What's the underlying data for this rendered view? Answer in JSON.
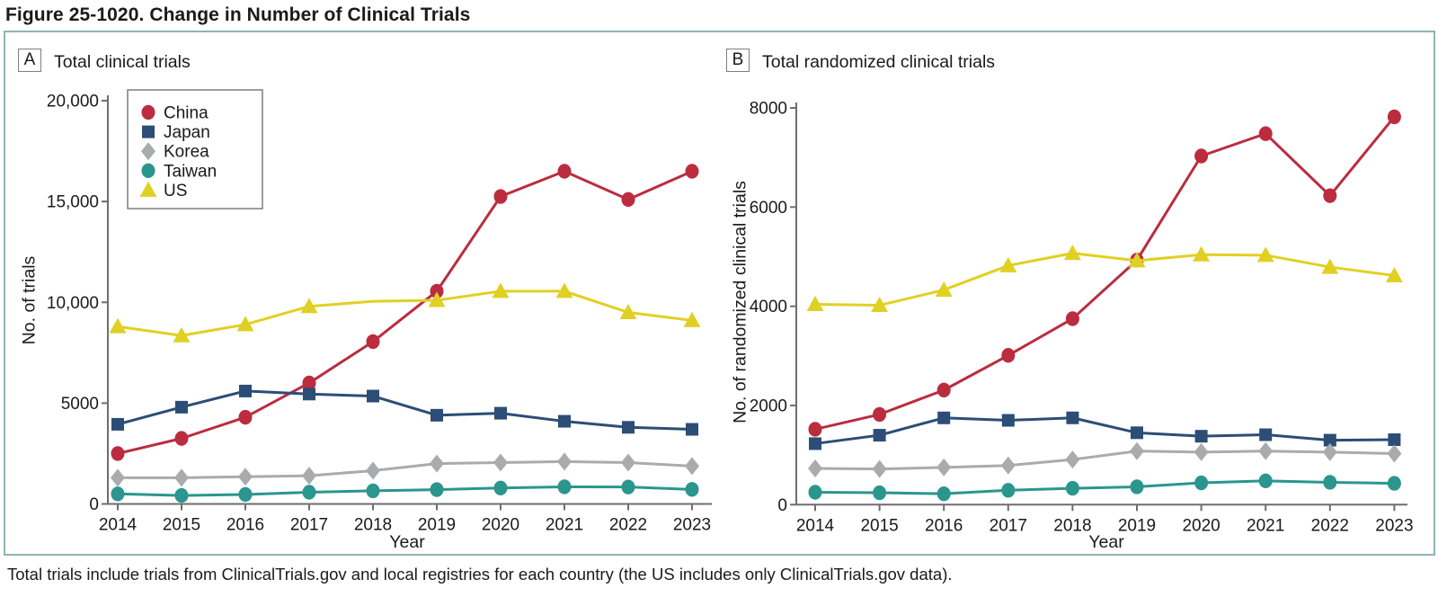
{
  "figure": {
    "title": "Figure 25-1020. Change in Number of Clinical Trials",
    "caption": "Total trials include trials from ClinicalTrials.gov and local registries for each country (the US includes only ClinicalTrials.gov data)."
  },
  "colors": {
    "china": "#bb2c3f",
    "japan": "#2c4d76",
    "korea": "#aaabae",
    "taiwan": "#2a968e",
    "us": "#e1d024",
    "axis": "#6d6e71",
    "legend_border": "#7c7e82",
    "box_border": "#8fb4b2"
  },
  "legend": {
    "location": "upper-left of panel A",
    "items": [
      {
        "label": "China",
        "series": "china",
        "marker": "circle"
      },
      {
        "label": "Japan",
        "series": "japan",
        "marker": "square"
      },
      {
        "label": "Korea",
        "series": "korea",
        "marker": "diamond"
      },
      {
        "label": "Taiwan",
        "series": "taiwan",
        "marker": "circle"
      },
      {
        "label": "US",
        "series": "us",
        "marker": "triangle"
      }
    ]
  },
  "chart_data": [
    {
      "panel": "A",
      "label": "A",
      "title": "Total clinical trials",
      "type": "line",
      "x": [
        2014,
        2015,
        2016,
        2017,
        2018,
        2019,
        2020,
        2021,
        2022,
        2023
      ],
      "xlabel": "Year",
      "ylabel": "No. of trials",
      "ylim": [
        0,
        20000
      ],
      "yticks": [
        {
          "v": 0,
          "label": "0"
        },
        {
          "v": 5000,
          "label": "5000"
        },
        {
          "v": 10000,
          "label": "10,000"
        },
        {
          "v": 15000,
          "label": "15,000"
        },
        {
          "v": 20000,
          "label": "20,000"
        }
      ],
      "grid": false,
      "legend_position": "upper-left-inside",
      "series": [
        {
          "name": "China",
          "key": "china",
          "marker": "circle",
          "values": [
            2500,
            3250,
            4300,
            6000,
            8050,
            10550,
            15250,
            16500,
            15100,
            16500
          ]
        },
        {
          "name": "Japan",
          "key": "japan",
          "marker": "square",
          "values": [
            3950,
            4800,
            5600,
            5450,
            5350,
            4400,
            4500,
            4100,
            3800,
            3700
          ]
        },
        {
          "name": "Korea",
          "key": "korea",
          "marker": "diamond",
          "values": [
            1300,
            1300,
            1350,
            1400,
            1650,
            2000,
            2050,
            2100,
            2050,
            1880
          ]
        },
        {
          "name": "Taiwan",
          "key": "taiwan",
          "marker": "circle",
          "values": [
            500,
            420,
            470,
            580,
            650,
            710,
            790,
            850,
            840,
            720
          ]
        },
        {
          "name": "US",
          "key": "us",
          "marker": "triangle",
          "values": [
            8800,
            8350,
            8900,
            9800,
            10050,
            10100,
            10550,
            10550,
            9500,
            9100
          ],
          "hidden_markers": [
            2018
          ]
        }
      ]
    },
    {
      "panel": "B",
      "label": "B",
      "title": "Total randomized clinical trials",
      "type": "line",
      "x": [
        2014,
        2015,
        2016,
        2017,
        2018,
        2019,
        2020,
        2021,
        2022,
        2023
      ],
      "xlabel": "Year",
      "ylabel": "No. of randomized clinical trials",
      "ylim": [
        0,
        8000
      ],
      "yticks": [
        {
          "v": 0,
          "label": "0"
        },
        {
          "v": 2000,
          "label": "2000"
        },
        {
          "v": 4000,
          "label": "4000"
        },
        {
          "v": 6000,
          "label": "6000"
        },
        {
          "v": 8000,
          "label": "8000"
        }
      ],
      "grid": false,
      "legend_position": "none",
      "series": [
        {
          "name": "China",
          "key": "china",
          "marker": "circle",
          "values": [
            1520,
            1820,
            2310,
            3010,
            3750,
            4930,
            7030,
            7480,
            6230,
            7820
          ]
        },
        {
          "name": "Japan",
          "key": "japan",
          "marker": "square",
          "values": [
            1230,
            1400,
            1750,
            1700,
            1750,
            1450,
            1380,
            1410,
            1300,
            1310
          ]
        },
        {
          "name": "Korea",
          "key": "korea",
          "marker": "diamond",
          "values": [
            730,
            720,
            750,
            790,
            910,
            1080,
            1060,
            1080,
            1060,
            1030
          ]
        },
        {
          "name": "Taiwan",
          "key": "taiwan",
          "marker": "circle",
          "values": [
            250,
            240,
            220,
            290,
            330,
            360,
            440,
            480,
            450,
            430
          ]
        },
        {
          "name": "US",
          "key": "us",
          "marker": "triangle",
          "values": [
            4040,
            4020,
            4330,
            4820,
            5070,
            4920,
            5040,
            5030,
            4790,
            4620
          ]
        }
      ]
    }
  ]
}
